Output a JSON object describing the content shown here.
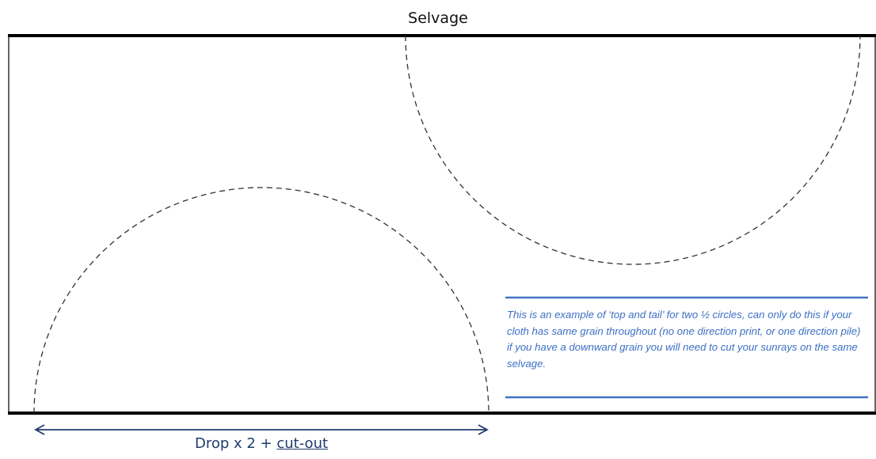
{
  "labels": {
    "selvage": "Selvage",
    "dimension_prefix": "Drop x 2 + ",
    "dimension_underlined": "cut-out"
  },
  "note": {
    "text": "This is an example of ‘top and tail’ for two ½ circles, can only do this if your cloth has same grain throughout (no one direction print, or one direction pile) if you have a downward grain you will need to cut your sunrays on the same selvage."
  },
  "colors": {
    "fabric_edge": "#000000",
    "dashed_outline": "#333333",
    "note_text": "#3c6fc4",
    "note_rule": "#4472c4",
    "dimension_arrow": "#1f3b6e"
  }
}
